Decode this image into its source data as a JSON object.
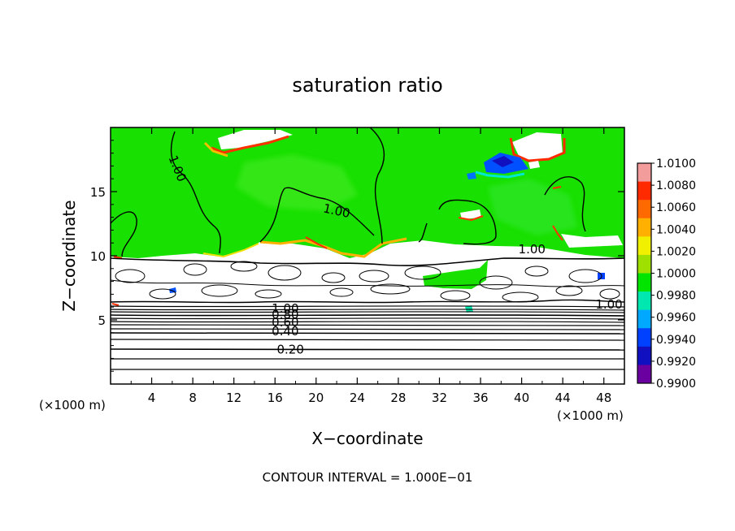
{
  "chart_data": {
    "type": "heatmap",
    "title": "saturation ratio",
    "xlabel": "X−coordinate",
    "ylabel": "Z−coordinate",
    "x_unit": "(×1000 m)",
    "z_unit": "(×1000 m)",
    "xlim": [
      0,
      50
    ],
    "ylim": [
      0,
      20
    ],
    "x_ticks": [
      4,
      8,
      12,
      16,
      20,
      24,
      28,
      32,
      36,
      40,
      44,
      48
    ],
    "y_ticks": [
      5,
      10,
      15
    ],
    "footer": "CONTOUR INTERVAL = 1.000E−01",
    "colorbar": {
      "ticks": [
        "1.0100",
        "1.0080",
        "1.0060",
        "1.0040",
        "1.0020",
        "1.0000",
        "0.9980",
        "0.9960",
        "0.9940",
        "0.9920",
        "0.9900"
      ],
      "colors": [
        "#f39c9c",
        "#ff2a00",
        "#ff6a00",
        "#ffb000",
        "#f0f000",
        "#a0e000",
        "#00e400",
        "#00e8b0",
        "#00a8ff",
        "#0040ff",
        "#1010c0",
        "#6a00a0"
      ]
    },
    "contours": [
      {
        "label": "0.20",
        "level": 0.2,
        "z": 2.7
      },
      {
        "label": "0.40",
        "level": 0.4,
        "z": 4.0
      },
      {
        "label": "0.60",
        "level": 0.6,
        "z": 4.7
      },
      {
        "label": "0.80",
        "level": 0.8,
        "z": 5.2
      },
      {
        "label": "1.00",
        "level": 1.0,
        "z": 5.6
      }
    ],
    "contour_labels": [
      {
        "text": "1.00",
        "x": 6.5,
        "z": 16.8
      },
      {
        "text": "1.00",
        "x": 22.0,
        "z": 13.5
      },
      {
        "text": "1.00",
        "x": 41.0,
        "z": 10.5
      },
      {
        "text": "1.00",
        "x": 48.5,
        "z": 6.2
      },
      {
        "text": "1.00",
        "x": 17.0,
        "z": 5.9
      },
      {
        "text": "0.80",
        "x": 17.0,
        "z": 5.4
      },
      {
        "text": "0.60",
        "x": 17.0,
        "z": 4.8
      },
      {
        "text": "0.40",
        "x": 17.0,
        "z": 4.1
      },
      {
        "text": "0.20",
        "x": 17.5,
        "z": 2.7
      }
    ]
  }
}
